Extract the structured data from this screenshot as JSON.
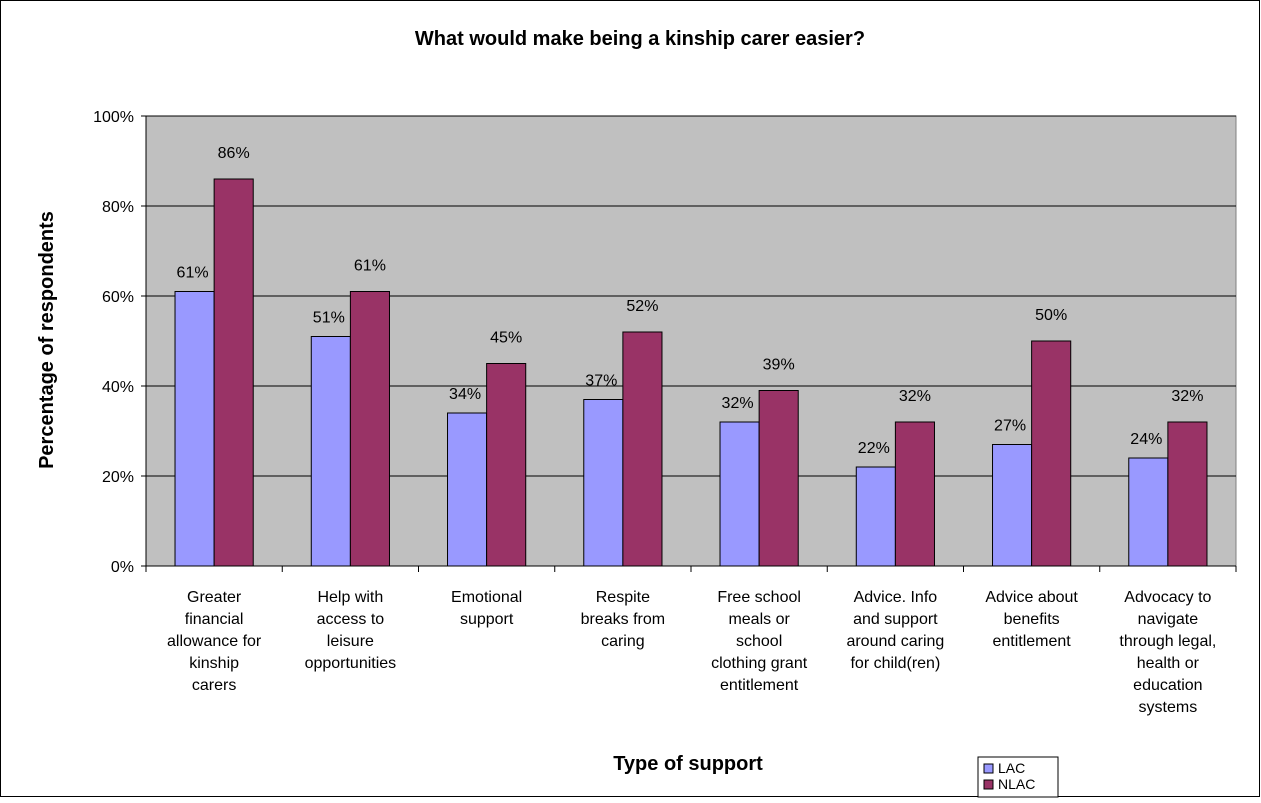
{
  "chart_data": {
    "type": "bar",
    "title": "What would make being a kinship carer easier?",
    "xlabel": "Type of support",
    "ylabel": "Percentage of respondents",
    "ylim": [
      0,
      100
    ],
    "y_ticks": [
      "0%",
      "20%",
      "40%",
      "60%",
      "80%",
      "100%"
    ],
    "grid": true,
    "legend_position": "bottom-right",
    "categories": [
      [
        "Greater",
        "financial",
        "allowance for",
        "kinship",
        "carers"
      ],
      [
        "Help with",
        "access to",
        "leisure",
        "opportunities"
      ],
      [
        "Emotional",
        "support"
      ],
      [
        "Respite",
        "breaks from",
        "caring"
      ],
      [
        "Free school",
        "meals or",
        "school",
        "clothing grant",
        "entitlement"
      ],
      [
        "Advice. Info",
        "and support",
        "around caring",
        "for child(ren)"
      ],
      [
        "Advice about",
        "benefits",
        "entitlement"
      ],
      [
        "Advocacy to",
        "navigate",
        "through legal,",
        "health or",
        "education",
        "systems"
      ]
    ],
    "series": [
      {
        "name": "LAC",
        "color": "#9999ff",
        "values": [
          61,
          51,
          34,
          37,
          32,
          22,
          27,
          24
        ],
        "labels": [
          "61%",
          "51%",
          "34%",
          "37%",
          "32%",
          "22%",
          "27%",
          "24%"
        ]
      },
      {
        "name": "NLAC",
        "color": "#993366",
        "values": [
          86,
          61,
          45,
          52,
          39,
          32,
          50,
          32
        ],
        "labels": [
          "86%",
          "61%",
          "45%",
          "52%",
          "39%",
          "32%",
          "50%",
          "32%"
        ]
      }
    ],
    "plot_background": "#c0c0c0"
  }
}
